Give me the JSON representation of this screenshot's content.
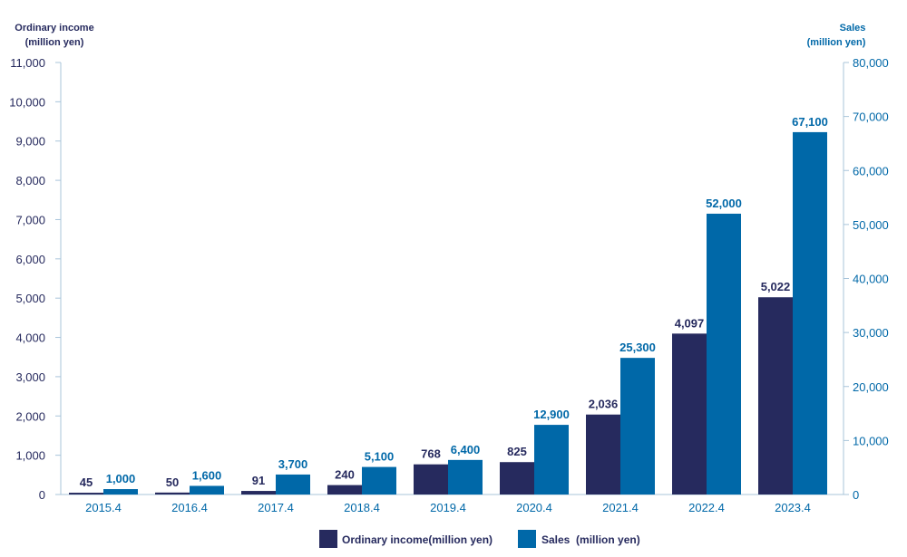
{
  "chart_data": {
    "type": "bar",
    "categories": [
      "2015.4",
      "2016.4",
      "2017.4",
      "2018.4",
      "2019.4",
      "2020.4",
      "2021.4",
      "2022.4",
      "2023.4"
    ],
    "series": [
      {
        "name": "Ordinary income(million yen)",
        "axis": "left",
        "color": "#262a5e",
        "values": [
          45,
          50,
          91,
          240,
          768,
          825,
          2036,
          4097,
          5022
        ],
        "value_labels": [
          "45",
          "50",
          "91",
          "240",
          "768",
          "825",
          "2,036",
          "4,097",
          "5,022"
        ]
      },
      {
        "name": "Sales  (million yen)",
        "axis": "right",
        "color": "#0068a8",
        "values": [
          1000,
          1600,
          3700,
          5100,
          6400,
          12900,
          25300,
          52000,
          67100
        ],
        "value_labels": [
          "1,000",
          "1,600",
          "3,700",
          "5,100",
          "6,400",
          "12,900",
          "25,300",
          "52,000",
          "67,100"
        ]
      }
    ],
    "left_axis": {
      "title_lines": [
        "Ordinary income",
        "(million yen)"
      ],
      "ylim": [
        0,
        11000
      ],
      "ticks": [
        "0",
        "1,000",
        "2,000",
        "3,000",
        "4,000",
        "5,000",
        "6,000",
        "7,000",
        "8,000",
        "9,000",
        "10,000",
        "11,000"
      ]
    },
    "right_axis": {
      "title_lines": [
        "Sales",
        "(million yen)"
      ],
      "ylim": [
        0,
        80000
      ],
      "ticks": [
        "0",
        "10,000",
        "20,000",
        "30,000",
        "40,000",
        "50,000",
        "60,000",
        "70,000",
        "80,000"
      ]
    },
    "legend": {
      "placement": "bottom-center",
      "items": [
        "Ordinary income(million yen)",
        "Sales  (million yen)"
      ]
    },
    "grid": false
  }
}
